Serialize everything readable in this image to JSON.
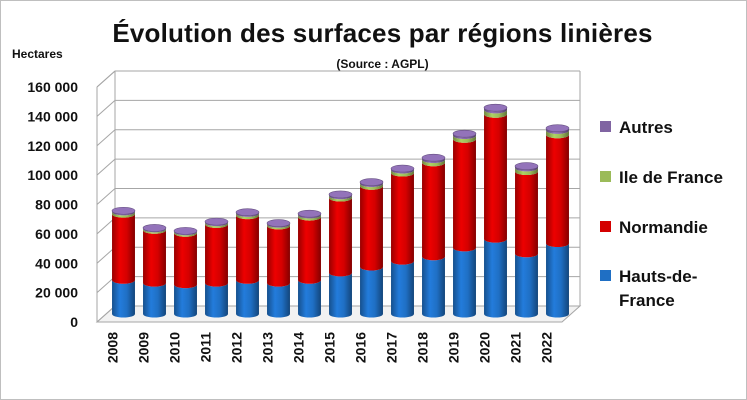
{
  "chart_data": {
    "type": "bar",
    "stacked": true,
    "three_d": true,
    "title": "Évolution des surfaces par régions linières",
    "subtitle": "(Source : AGPL)",
    "ylabel": "Hectares",
    "ylim": [
      0,
      160000
    ],
    "yticks": [
      "0",
      "20 000",
      "40 000",
      "60 000",
      "80 000",
      "100 000",
      "120 000",
      "140 000",
      "160 000"
    ],
    "categories": [
      "2008",
      "2009",
      "2010",
      "2011",
      "2012",
      "2013",
      "2014",
      "2015",
      "2016",
      "2017",
      "2018",
      "2019",
      "2020",
      "2021",
      "2022"
    ],
    "legend_position": "right",
    "series": [
      {
        "name": "Hauts-de-France",
        "color": "#1f6fc4",
        "values": [
          23000,
          21000,
          20000,
          21000,
          23000,
          21000,
          23000,
          28000,
          32000,
          36000,
          39000,
          45000,
          51000,
          41000,
          48000
        ]
      },
      {
        "name": "Normandie",
        "color": "#d40000",
        "values": [
          45000,
          36000,
          35000,
          40000,
          44000,
          39000,
          43000,
          51000,
          55000,
          60000,
          64000,
          74000,
          85000,
          56000,
          74000
        ]
      },
      {
        "name": "Ile de France",
        "color": "#9bbb59",
        "values": [
          1500,
          1000,
          1000,
          1200,
          1500,
          1200,
          1500,
          1500,
          1800,
          2000,
          2200,
          2500,
          3000,
          2500,
          3000
        ]
      },
      {
        "name": "Autres",
        "color": "#8064a2",
        "values": [
          800,
          600,
          600,
          700,
          800,
          700,
          800,
          900,
          1000,
          1000,
          1200,
          1300,
          1500,
          1200,
          1500
        ]
      }
    ],
    "legend_order": [
      "Autres",
      "Ile de France",
      "Normandie",
      "Hauts-de-France"
    ]
  }
}
